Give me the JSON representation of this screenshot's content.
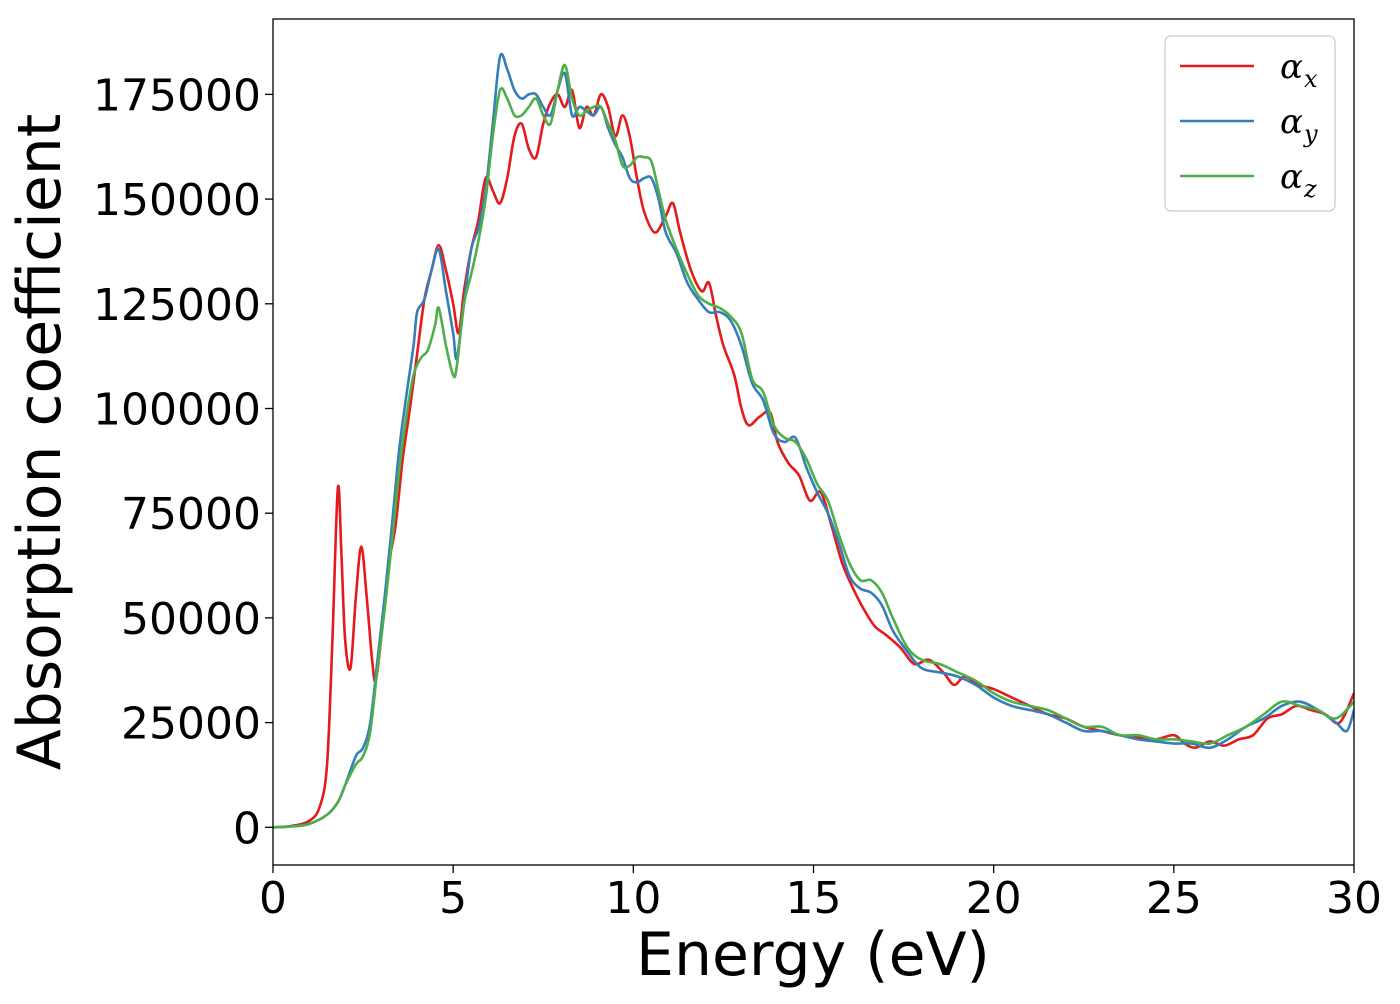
{
  "chart_data": {
    "type": "line",
    "title": "",
    "xlabel": "Energy (eV)",
    "ylabel": "Absorption coefficient",
    "xlim": [
      0,
      30
    ],
    "ylim": [
      -9000,
      193000
    ],
    "grid": false,
    "legend": "top-right",
    "x_ticks": [
      0,
      5,
      10,
      15,
      20,
      25,
      30
    ],
    "x_tick_labels": [
      "0",
      "5",
      "10",
      "15",
      "20",
      "25",
      "30"
    ],
    "y_ticks": [
      0,
      25000,
      50000,
      75000,
      100000,
      125000,
      150000,
      175000
    ],
    "y_tick_labels": [
      "0",
      "25000",
      "50000",
      "75000",
      "100000",
      "125000",
      "150000",
      "175000"
    ],
    "series": [
      {
        "name": "αx",
        "symbol": "α",
        "sub": "x",
        "color": "#e41a1c",
        "points": [
          [
            0,
            0
          ],
          [
            0.5,
            300
          ],
          [
            1.0,
            1500
          ],
          [
            1.3,
            5000
          ],
          [
            1.5,
            15000
          ],
          [
            1.65,
            45000
          ],
          [
            1.8,
            81000
          ],
          [
            1.9,
            65000
          ],
          [
            2.0,
            45000
          ],
          [
            2.15,
            38000
          ],
          [
            2.3,
            55000
          ],
          [
            2.45,
            67000
          ],
          [
            2.6,
            55000
          ],
          [
            2.75,
            40000
          ],
          [
            2.85,
            35000
          ],
          [
            3.0,
            45000
          ],
          [
            3.2,
            62000
          ],
          [
            3.4,
            72000
          ],
          [
            3.6,
            88000
          ],
          [
            3.8,
            100000
          ],
          [
            4.0,
            113000
          ],
          [
            4.2,
            126000
          ],
          [
            4.4,
            133000
          ],
          [
            4.6,
            139000
          ],
          [
            4.8,
            133000
          ],
          [
            5.0,
            125000
          ],
          [
            5.15,
            118000
          ],
          [
            5.3,
            128000
          ],
          [
            5.5,
            138000
          ],
          [
            5.7,
            145000
          ],
          [
            5.9,
            155000
          ],
          [
            6.1,
            152000
          ],
          [
            6.3,
            149000
          ],
          [
            6.5,
            155000
          ],
          [
            6.7,
            165000
          ],
          [
            6.9,
            168000
          ],
          [
            7.1,
            162000
          ],
          [
            7.3,
            160000
          ],
          [
            7.5,
            168000
          ],
          [
            7.7,
            173000
          ],
          [
            7.9,
            175000
          ],
          [
            8.1,
            172000
          ],
          [
            8.3,
            176000
          ],
          [
            8.5,
            167000
          ],
          [
            8.7,
            172000
          ],
          [
            8.9,
            170000
          ],
          [
            9.1,
            175000
          ],
          [
            9.3,
            172000
          ],
          [
            9.5,
            165000
          ],
          [
            9.7,
            170000
          ],
          [
            9.9,
            165000
          ],
          [
            10.1,
            155000
          ],
          [
            10.3,
            147000
          ],
          [
            10.6,
            142000
          ],
          [
            10.9,
            146000
          ],
          [
            11.1,
            149000
          ],
          [
            11.3,
            142000
          ],
          [
            11.6,
            133000
          ],
          [
            11.9,
            128000
          ],
          [
            12.1,
            130000
          ],
          [
            12.3,
            122000
          ],
          [
            12.5,
            115000
          ],
          [
            12.8,
            108000
          ],
          [
            13.0,
            100000
          ],
          [
            13.2,
            96000
          ],
          [
            13.5,
            98000
          ],
          [
            13.8,
            99000
          ],
          [
            14.0,
            92000
          ],
          [
            14.3,
            87000
          ],
          [
            14.6,
            84000
          ],
          [
            14.9,
            78000
          ],
          [
            15.2,
            80000
          ],
          [
            15.5,
            72000
          ],
          [
            15.8,
            63000
          ],
          [
            16.1,
            57000
          ],
          [
            16.4,
            52000
          ],
          [
            16.7,
            48000
          ],
          [
            17.0,
            46000
          ],
          [
            17.4,
            43000
          ],
          [
            17.8,
            39000
          ],
          [
            18.2,
            40000
          ],
          [
            18.6,
            37000
          ],
          [
            18.9,
            34000
          ],
          [
            19.2,
            36000
          ],
          [
            19.6,
            34000
          ],
          [
            20.0,
            33000
          ],
          [
            20.5,
            31000
          ],
          [
            21.0,
            29000
          ],
          [
            21.5,
            27000
          ],
          [
            22.0,
            26000
          ],
          [
            22.5,
            24000
          ],
          [
            23.0,
            23000
          ],
          [
            23.5,
            22000
          ],
          [
            24.0,
            21500
          ],
          [
            24.5,
            21000
          ],
          [
            25.0,
            22000
          ],
          [
            25.3,
            20000
          ],
          [
            25.6,
            19000
          ],
          [
            26.0,
            20500
          ],
          [
            26.4,
            19500
          ],
          [
            26.8,
            21000
          ],
          [
            27.2,
            22000
          ],
          [
            27.6,
            26000
          ],
          [
            28.0,
            27000
          ],
          [
            28.4,
            29000
          ],
          [
            28.8,
            28000
          ],
          [
            29.2,
            27000
          ],
          [
            29.6,
            25000
          ],
          [
            30.0,
            32000
          ]
        ]
      },
      {
        "name": "αy",
        "symbol": "α",
        "sub": "y",
        "color": "#377eb8",
        "points": [
          [
            0,
            0
          ],
          [
            0.5,
            200
          ],
          [
            1.0,
            800
          ],
          [
            1.5,
            3000
          ],
          [
            1.8,
            6000
          ],
          [
            2.0,
            10000
          ],
          [
            2.3,
            17000
          ],
          [
            2.5,
            19000
          ],
          [
            2.7,
            25000
          ],
          [
            2.9,
            40000
          ],
          [
            3.1,
            55000
          ],
          [
            3.3,
            72000
          ],
          [
            3.5,
            90000
          ],
          [
            3.7,
            103000
          ],
          [
            3.9,
            115000
          ],
          [
            4.0,
            123000
          ],
          [
            4.2,
            126000
          ],
          [
            4.4,
            133000
          ],
          [
            4.6,
            138000
          ],
          [
            4.8,
            128000
          ],
          [
            5.0,
            118000
          ],
          [
            5.1,
            112000
          ],
          [
            5.3,
            125000
          ],
          [
            5.5,
            138000
          ],
          [
            5.7,
            143000
          ],
          [
            5.9,
            152000
          ],
          [
            6.1,
            168000
          ],
          [
            6.3,
            184000
          ],
          [
            6.5,
            181000
          ],
          [
            6.7,
            176000
          ],
          [
            6.9,
            174000
          ],
          [
            7.1,
            175000
          ],
          [
            7.3,
            175000
          ],
          [
            7.5,
            172000
          ],
          [
            7.7,
            170000
          ],
          [
            7.9,
            176000
          ],
          [
            8.1,
            180000
          ],
          [
            8.3,
            170000
          ],
          [
            8.5,
            172000
          ],
          [
            8.7,
            171000
          ],
          [
            8.9,
            170000
          ],
          [
            9.1,
            172000
          ],
          [
            9.3,
            167000
          ],
          [
            9.5,
            163000
          ],
          [
            9.7,
            160000
          ],
          [
            9.9,
            155000
          ],
          [
            10.1,
            154000
          ],
          [
            10.3,
            155000
          ],
          [
            10.5,
            155000
          ],
          [
            10.7,
            150000
          ],
          [
            10.9,
            142000
          ],
          [
            11.2,
            137000
          ],
          [
            11.5,
            130000
          ],
          [
            11.8,
            126000
          ],
          [
            12.1,
            123000
          ],
          [
            12.4,
            123000
          ],
          [
            12.7,
            121000
          ],
          [
            13.0,
            115000
          ],
          [
            13.3,
            106000
          ],
          [
            13.6,
            102000
          ],
          [
            13.9,
            94000
          ],
          [
            14.2,
            92000
          ],
          [
            14.5,
            93000
          ],
          [
            14.8,
            86000
          ],
          [
            15.1,
            80000
          ],
          [
            15.4,
            75000
          ],
          [
            15.7,
            68000
          ],
          [
            16.0,
            60000
          ],
          [
            16.3,
            57000
          ],
          [
            16.6,
            56000
          ],
          [
            16.9,
            53000
          ],
          [
            17.2,
            47000
          ],
          [
            17.6,
            42000
          ],
          [
            18.0,
            38000
          ],
          [
            18.5,
            37000
          ],
          [
            19.0,
            36000
          ],
          [
            19.5,
            34000
          ],
          [
            20.0,
            31000
          ],
          [
            20.5,
            29000
          ],
          [
            21.0,
            28000
          ],
          [
            21.5,
            27000
          ],
          [
            22.0,
            25000
          ],
          [
            22.5,
            23000
          ],
          [
            23.0,
            23000
          ],
          [
            23.5,
            22000
          ],
          [
            24.0,
            21000
          ],
          [
            24.5,
            20500
          ],
          [
            25.0,
            20000
          ],
          [
            25.5,
            20000
          ],
          [
            26.0,
            19000
          ],
          [
            26.5,
            21000
          ],
          [
            27.0,
            24000
          ],
          [
            27.5,
            26000
          ],
          [
            28.0,
            29000
          ],
          [
            28.5,
            30000
          ],
          [
            29.0,
            28000
          ],
          [
            29.5,
            25000
          ],
          [
            29.8,
            23000
          ],
          [
            30.0,
            28000
          ]
        ]
      },
      {
        "name": "αz",
        "symbol": "α",
        "sub": "z",
        "color": "#4daf4a",
        "points": [
          [
            0,
            0
          ],
          [
            0.5,
            200
          ],
          [
            1.0,
            800
          ],
          [
            1.5,
            3000
          ],
          [
            1.8,
            6000
          ],
          [
            2.0,
            10000
          ],
          [
            2.3,
            15000
          ],
          [
            2.5,
            17000
          ],
          [
            2.7,
            23000
          ],
          [
            2.9,
            38000
          ],
          [
            3.1,
            52000
          ],
          [
            3.3,
            68000
          ],
          [
            3.5,
            85000
          ],
          [
            3.7,
            98000
          ],
          [
            3.9,
            108000
          ],
          [
            4.1,
            112000
          ],
          [
            4.3,
            114000
          ],
          [
            4.5,
            120000
          ],
          [
            4.6,
            124000
          ],
          [
            4.8,
            115000
          ],
          [
            5.0,
            108000
          ],
          [
            5.1,
            110000
          ],
          [
            5.3,
            125000
          ],
          [
            5.5,
            132000
          ],
          [
            5.7,
            140000
          ],
          [
            5.9,
            150000
          ],
          [
            6.1,
            165000
          ],
          [
            6.3,
            176000
          ],
          [
            6.5,
            174000
          ],
          [
            6.7,
            170000
          ],
          [
            6.9,
            170000
          ],
          [
            7.1,
            172000
          ],
          [
            7.3,
            174000
          ],
          [
            7.5,
            170000
          ],
          [
            7.7,
            168000
          ],
          [
            7.9,
            176000
          ],
          [
            8.1,
            182000
          ],
          [
            8.3,
            174000
          ],
          [
            8.5,
            170000
          ],
          [
            8.7,
            171000
          ],
          [
            8.9,
            172000
          ],
          [
            9.1,
            172000
          ],
          [
            9.3,
            168000
          ],
          [
            9.5,
            164000
          ],
          [
            9.7,
            158000
          ],
          [
            9.9,
            158000
          ],
          [
            10.1,
            160000
          ],
          [
            10.3,
            160000
          ],
          [
            10.5,
            159000
          ],
          [
            10.7,
            152000
          ],
          [
            10.9,
            145000
          ],
          [
            11.2,
            138000
          ],
          [
            11.5,
            132000
          ],
          [
            11.8,
            127000
          ],
          [
            12.1,
            125000
          ],
          [
            12.4,
            124000
          ],
          [
            12.7,
            122000
          ],
          [
            13.0,
            118000
          ],
          [
            13.3,
            107000
          ],
          [
            13.6,
            104000
          ],
          [
            13.9,
            96000
          ],
          [
            14.2,
            93000
          ],
          [
            14.5,
            92000
          ],
          [
            14.8,
            88000
          ],
          [
            15.1,
            82000
          ],
          [
            15.4,
            78000
          ],
          [
            15.7,
            70000
          ],
          [
            16.0,
            63000
          ],
          [
            16.3,
            59000
          ],
          [
            16.6,
            59000
          ],
          [
            16.9,
            56000
          ],
          [
            17.2,
            50000
          ],
          [
            17.6,
            43000
          ],
          [
            18.0,
            40000
          ],
          [
            18.5,
            39000
          ],
          [
            19.0,
            37000
          ],
          [
            19.5,
            35000
          ],
          [
            20.0,
            32000
          ],
          [
            20.5,
            30000
          ],
          [
            21.0,
            29000
          ],
          [
            21.5,
            28000
          ],
          [
            22.0,
            26000
          ],
          [
            22.5,
            24000
          ],
          [
            23.0,
            24000
          ],
          [
            23.5,
            22000
          ],
          [
            24.0,
            22000
          ],
          [
            24.5,
            21000
          ],
          [
            25.0,
            21000
          ],
          [
            25.5,
            20500
          ],
          [
            26.0,
            20000
          ],
          [
            26.5,
            22000
          ],
          [
            27.0,
            24000
          ],
          [
            27.5,
            27000
          ],
          [
            28.0,
            30000
          ],
          [
            28.5,
            29000
          ],
          [
            29.0,
            28000
          ],
          [
            29.5,
            26000
          ],
          [
            30.0,
            30000
          ]
        ]
      }
    ]
  }
}
